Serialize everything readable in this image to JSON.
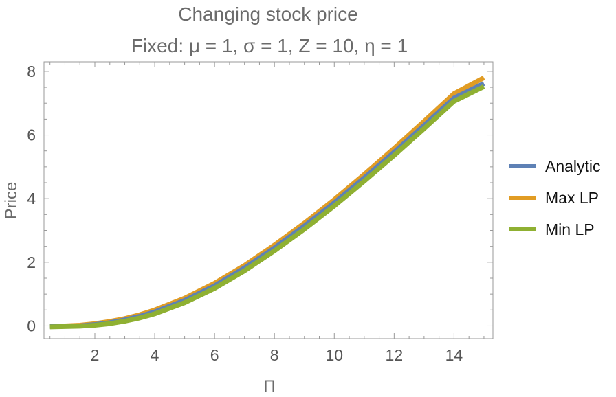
{
  "chart_data": {
    "type": "line",
    "title": "Changing stock price",
    "subtitle": "Fixed: μ = 1, σ = 1, Z = 10, η = 1",
    "xlabel": "Π",
    "ylabel": "Price",
    "xlim": [
      0.3,
      15.3
    ],
    "ylim": [
      -0.4,
      8.3
    ],
    "x_ticks": [
      "2",
      "4",
      "6",
      "8",
      "10",
      "12",
      "14"
    ],
    "y_ticks": [
      "0",
      "2",
      "4",
      "6",
      "8"
    ],
    "grid": false,
    "frame": true,
    "legend_position": "right",
    "x": [
      0.5,
      1,
      1.5,
      2,
      2.5,
      3,
      3.5,
      4,
      5,
      6,
      7,
      8,
      9,
      10,
      11,
      12,
      13,
      14,
      15
    ],
    "series": [
      {
        "name": "Analytic",
        "color": "#5e81b5",
        "values": [
          -0.02,
          -0.01,
          0.0,
          0.04,
          0.1,
          0.19,
          0.3,
          0.44,
          0.8,
          1.26,
          1.82,
          2.45,
          3.14,
          3.87,
          4.65,
          5.46,
          6.3,
          7.16,
          7.62
        ]
      },
      {
        "name": "Max LP",
        "color": "#e19c24",
        "values": [
          -0.01,
          0.0,
          0.02,
          0.07,
          0.14,
          0.23,
          0.35,
          0.5,
          0.87,
          1.34,
          1.9,
          2.54,
          3.23,
          3.97,
          4.76,
          5.58,
          6.43,
          7.3,
          7.8
        ]
      },
      {
        "name": "Min LP",
        "color": "#8fb032",
        "values": [
          -0.03,
          -0.02,
          -0.01,
          0.02,
          0.07,
          0.15,
          0.25,
          0.38,
          0.73,
          1.18,
          1.73,
          2.36,
          3.04,
          3.77,
          4.55,
          5.36,
          6.2,
          7.06,
          7.52
        ]
      }
    ]
  }
}
